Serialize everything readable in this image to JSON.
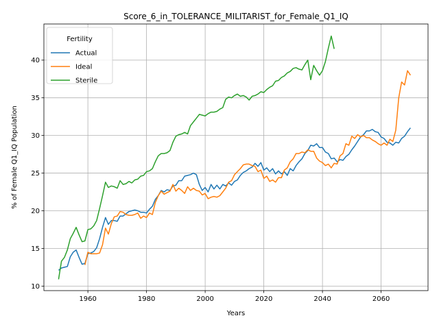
{
  "chart_data": {
    "type": "line",
    "title": "Score_6_in_TOLERANCE_MILITARIST_for_Female_Q1_IQ",
    "xlabel": "Years",
    "ylabel": "% of Female Q1_IQ Population",
    "xlim": [
      1945,
      2076
    ],
    "ylim": [
      9.4,
      44.8
    ],
    "xticks": [
      1960,
      1980,
      2000,
      2020,
      2040,
      2060
    ],
    "yticks": [
      10,
      15,
      20,
      25,
      30,
      35,
      40
    ],
    "grid": true,
    "legend": {
      "title": "Fertility",
      "position": "top-left"
    },
    "colors": {
      "Actual": "#1f77b4",
      "Ideal": "#ff7f0e",
      "Sterile": "#2ca02c"
    },
    "series": [
      {
        "name": "Actual",
        "x": [
          1950,
          1951,
          1952,
          1953,
          1954,
          1955,
          1956,
          1957,
          1958,
          1959,
          1960,
          1961,
          1962,
          1963,
          1964,
          1965,
          1966,
          1967,
          1968,
          1969,
          1970,
          1971,
          1972,
          1973,
          1974,
          1975,
          1976,
          1977,
          1978,
          1979,
          1980,
          1981,
          1982,
          1983,
          1984,
          1985,
          1986,
          1987,
          1988,
          1989,
          1990,
          1991,
          1992,
          1993,
          1994,
          1995,
          1996,
          1997,
          1998,
          1999,
          2000,
          2001,
          2002,
          2003,
          2004,
          2005,
          2006,
          2007,
          2008,
          2009,
          2010,
          2011,
          2012,
          2013,
          2014,
          2015,
          2016,
          2017,
          2018,
          2019,
          2020,
          2021,
          2022,
          2023,
          2024,
          2025,
          2026,
          2027,
          2028,
          2029,
          2030,
          2031,
          2032,
          2033,
          2034,
          2035,
          2036,
          2037,
          2038,
          2039,
          2040,
          2041,
          2042,
          2043,
          2044,
          2045,
          2046,
          2047,
          2048,
          2049,
          2050,
          2051,
          2052,
          2053,
          2054,
          2055,
          2056,
          2057,
          2058,
          2059,
          2060,
          2061,
          2062,
          2063,
          2064,
          2065,
          2066,
          2067,
          2068,
          2069,
          2070
        ],
        "values": [
          12.1,
          12.4,
          12.5,
          12.6,
          13.9,
          14.5,
          14.8,
          13.8,
          12.9,
          13.0,
          14.3,
          14.4,
          14.6,
          15.1,
          16.3,
          17.8,
          19.1,
          18.2,
          18.7,
          18.7,
          18.6,
          19.3,
          19.3,
          19.6,
          19.9,
          20.0,
          20.1,
          20.0,
          19.8,
          19.8,
          19.7,
          20.2,
          20.6,
          21.5,
          22.0,
          22.7,
          22.5,
          22.8,
          22.7,
          23.3,
          23.4,
          24.0,
          24.0,
          24.6,
          24.7,
          24.8,
          25.0,
          24.8,
          23.5,
          22.7,
          23.1,
          22.5,
          23.5,
          22.9,
          23.4,
          22.9,
          23.5,
          23.3,
          23.7,
          23.4,
          23.9,
          24.1,
          24.7,
          25.1,
          25.3,
          25.6,
          25.8,
          26.3,
          25.9,
          26.4,
          25.4,
          25.7,
          25.2,
          25.6,
          24.9,
          25.3,
          24.9,
          25.2,
          24.7,
          25.6,
          25.3,
          26.0,
          26.5,
          26.9,
          27.6,
          28.0,
          28.7,
          28.6,
          28.9,
          28.4,
          28.4,
          27.8,
          27.6,
          26.9,
          27.0,
          26.5,
          26.8,
          26.7,
          27.2,
          27.5,
          28.1,
          28.6,
          29.2,
          29.8,
          30.1,
          30.6,
          30.6,
          30.8,
          30.5,
          30.4,
          29.8,
          29.6,
          29.1,
          29.0,
          28.7,
          29.1,
          29.0,
          29.6,
          29.9,
          30.5,
          31.0
        ]
      },
      {
        "name": "Ideal",
        "x": [
          1959,
          1960,
          1961,
          1962,
          1963,
          1964,
          1965,
          1966,
          1967,
          1968,
          1969,
          1970,
          1971,
          1972,
          1973,
          1974,
          1975,
          1976,
          1977,
          1978,
          1979,
          1980,
          1981,
          1982,
          1983,
          1984,
          1985,
          1986,
          1987,
          1988,
          1989,
          1990,
          1991,
          1992,
          1993,
          1994,
          1995,
          1996,
          1997,
          1998,
          1999,
          2000,
          2001,
          2002,
          2003,
          2004,
          2005,
          2006,
          2007,
          2008,
          2009,
          2010,
          2011,
          2012,
          2013,
          2014,
          2015,
          2016,
          2017,
          2018,
          2019,
          2020,
          2021,
          2022,
          2023,
          2024,
          2025,
          2026,
          2027,
          2028,
          2029,
          2030,
          2031,
          2032,
          2033,
          2034,
          2035,
          2036,
          2037,
          2038,
          2039,
          2040,
          2041,
          2042,
          2043,
          2044,
          2045,
          2046,
          2047,
          2048,
          2049,
          2050,
          2051,
          2052,
          2053,
          2054,
          2055,
          2056,
          2057,
          2058,
          2059,
          2060,
          2061,
          2062,
          2063,
          2064,
          2065,
          2066,
          2067,
          2068,
          2069,
          2070
        ],
        "values": [
          12.8,
          14.5,
          14.3,
          14.3,
          14.3,
          14.4,
          15.5,
          17.7,
          16.9,
          18.3,
          19.2,
          19.3,
          19.9,
          19.8,
          19.5,
          19.4,
          19.4,
          19.5,
          19.7,
          19.0,
          19.3,
          19.1,
          19.7,
          19.5,
          21.1,
          22.0,
          22.6,
          22.2,
          22.4,
          22.6,
          23.5,
          22.6,
          23.0,
          22.7,
          22.3,
          23.2,
          22.7,
          23.0,
          22.7,
          22.6,
          22.1,
          22.3,
          21.6,
          21.8,
          21.9,
          21.8,
          22.0,
          22.5,
          23.0,
          23.8,
          24.0,
          24.8,
          25.2,
          25.6,
          26.1,
          26.2,
          26.2,
          26.0,
          25.9,
          25.2,
          25.4,
          24.3,
          24.6,
          23.9,
          24.1,
          23.8,
          24.4,
          24.4,
          25.4,
          25.7,
          26.5,
          26.9,
          27.6,
          27.6,
          27.8,
          27.7,
          28.1,
          27.9,
          27.9,
          27.0,
          26.6,
          26.4,
          26.0,
          26.2,
          25.7,
          26.3,
          26.2,
          27.3,
          27.6,
          28.9,
          28.7,
          29.9,
          29.6,
          30.1,
          29.8,
          30.0,
          29.7,
          29.7,
          29.4,
          29.2,
          28.9,
          28.7,
          29.0,
          28.7,
          29.5,
          29.2,
          30.7,
          35.0,
          37.1,
          36.7,
          38.6,
          38.0
        ]
      },
      {
        "name": "Sterile",
        "x": [
          1950,
          1951,
          1952,
          1953,
          1954,
          1955,
          1956,
          1957,
          1958,
          1959,
          1960,
          1961,
          1962,
          1963,
          1964,
          1965,
          1966,
          1967,
          1968,
          1969,
          1970,
          1971,
          1972,
          1973,
          1974,
          1975,
          1976,
          1977,
          1978,
          1979,
          1980,
          1981,
          1982,
          1983,
          1984,
          1985,
          1986,
          1987,
          1988,
          1989,
          1990,
          1991,
          1992,
          1993,
          1994,
          1995,
          1996,
          1997,
          1998,
          1999,
          2000,
          2001,
          2002,
          2003,
          2004,
          2005,
          2006,
          2007,
          2008,
          2009,
          2010,
          2011,
          2012,
          2013,
          2014,
          2015,
          2016,
          2017,
          2018,
          2019,
          2020,
          2021,
          2022,
          2023,
          2024,
          2025,
          2026,
          2027,
          2028,
          2029,
          2030,
          2031,
          2032,
          2033,
          2034,
          2035,
          2036,
          2037,
          2038,
          2039,
          2040,
          2041,
          2042,
          2043,
          2044
        ],
        "values": [
          10.9,
          13.3,
          13.8,
          14.8,
          16.3,
          17.0,
          17.8,
          16.8,
          15.9,
          16.0,
          17.5,
          17.6,
          18.0,
          18.7,
          20.3,
          22.0,
          23.8,
          23.1,
          23.3,
          23.2,
          23.0,
          24.0,
          23.5,
          23.6,
          23.9,
          23.7,
          24.1,
          24.2,
          24.6,
          24.7,
          25.2,
          25.3,
          25.6,
          26.5,
          27.3,
          27.6,
          27.6,
          27.7,
          28.0,
          29.1,
          29.9,
          30.1,
          30.2,
          30.4,
          30.2,
          31.3,
          31.8,
          32.3,
          32.8,
          32.7,
          32.6,
          32.9,
          33.1,
          33.1,
          33.2,
          33.5,
          33.7,
          34.8,
          35.1,
          35.0,
          35.3,
          35.5,
          35.2,
          35.3,
          35.1,
          34.7,
          35.2,
          35.3,
          35.5,
          35.8,
          35.7,
          36.1,
          36.4,
          36.6,
          37.2,
          37.3,
          37.7,
          37.9,
          38.3,
          38.5,
          38.9,
          39.0,
          38.8,
          38.7,
          39.4,
          40.0,
          37.4,
          39.3,
          38.6,
          38.0,
          38.6,
          39.8,
          41.6,
          43.2,
          41.5
        ]
      }
    ]
  }
}
